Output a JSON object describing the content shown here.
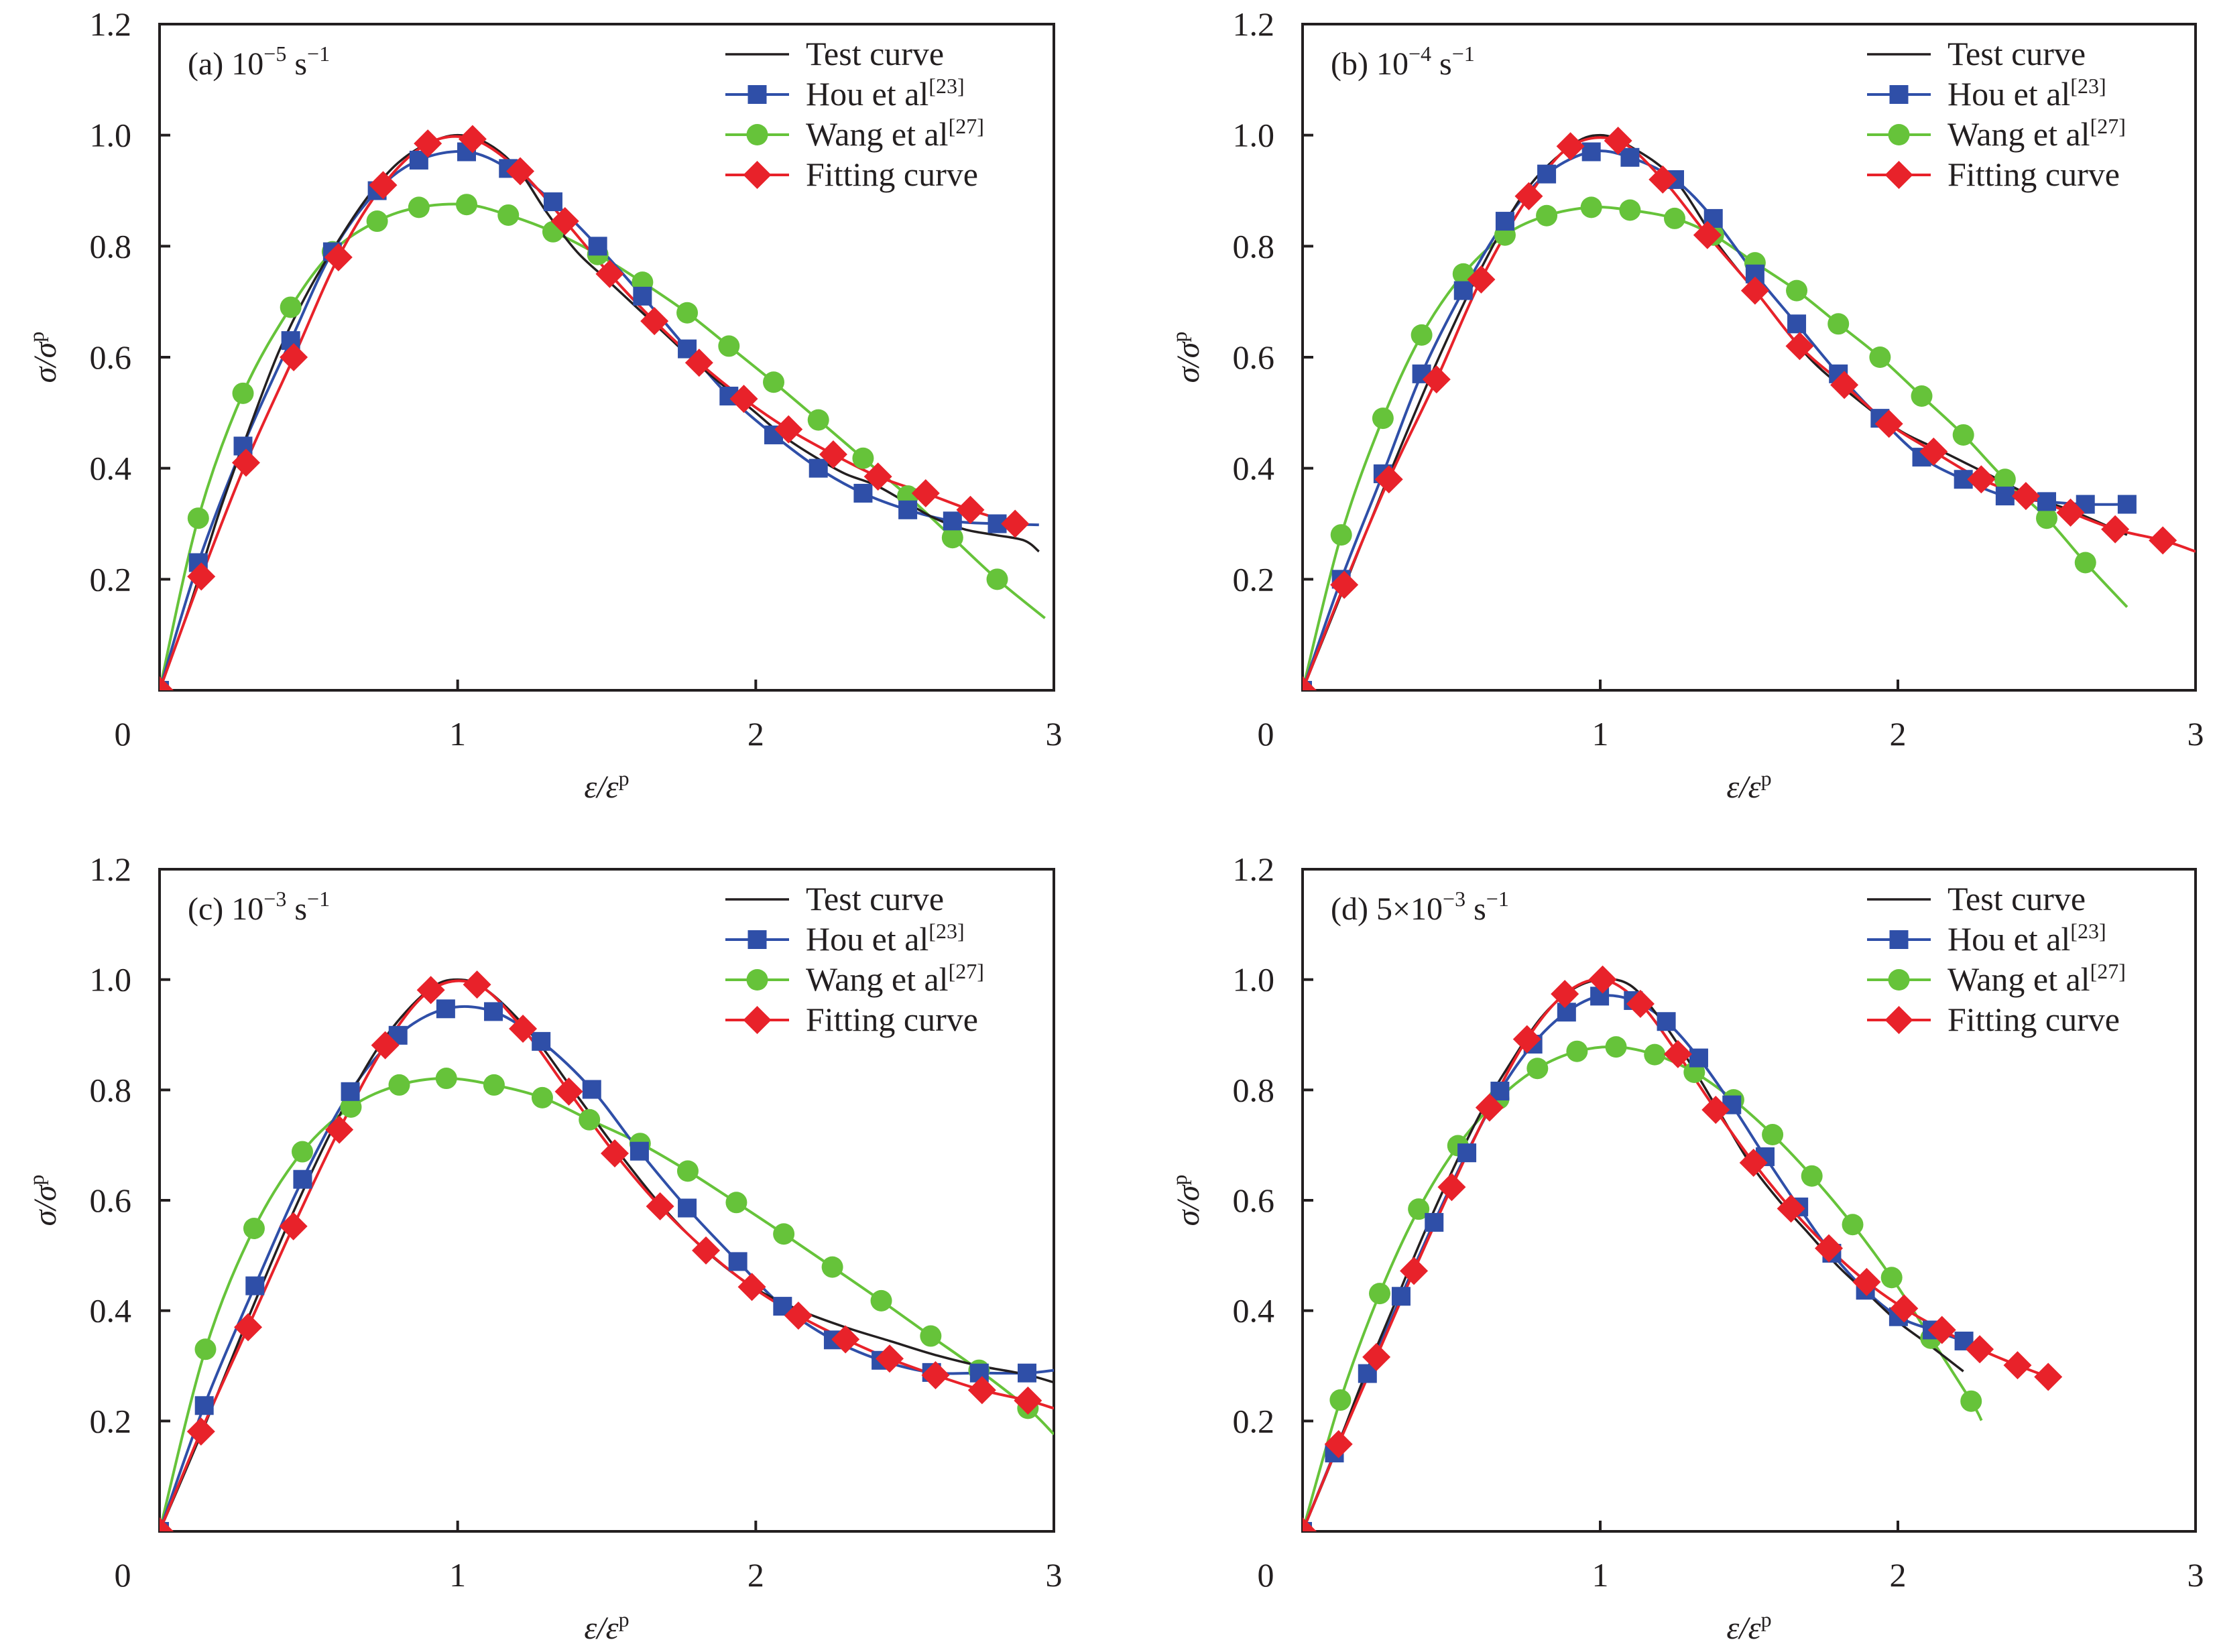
{
  "chart_data": [
    {
      "type": "line",
      "panel": "a",
      "title": "(a) 10⁻⁵ s⁻¹",
      "title_parts": {
        "prefix": "(a) 10",
        "exp": "−5",
        "unit": " s",
        "unit_exp": "−1"
      },
      "xlabel": "ε/εp",
      "ylabel": "σ/σp",
      "xlim": [
        0,
        3
      ],
      "ylim": [
        0,
        1.2
      ],
      "xticks": [
        "0",
        "1",
        "2",
        "3"
      ],
      "yticks": [
        "0.2",
        "0.4",
        "0.6",
        "0.8",
        "1.0",
        "1.2"
      ],
      "legend_position": "top-right",
      "series": [
        {
          "name": "Test curve",
          "key": "test",
          "x": [
            0,
            0.1,
            0.2,
            0.3,
            0.4,
            0.5,
            0.6,
            0.7,
            0.8,
            0.9,
            1.0,
            1.1,
            1.2,
            1.3,
            1.4,
            1.5,
            1.6,
            1.7,
            1.8,
            1.9,
            2.0,
            2.1,
            2.2,
            2.3,
            2.4,
            2.5,
            2.6,
            2.7,
            2.8,
            2.9,
            2.95
          ],
          "y": [
            0,
            0.15,
            0.32,
            0.47,
            0.61,
            0.72,
            0.81,
            0.89,
            0.95,
            0.985,
            1.0,
            0.985,
            0.94,
            0.86,
            0.79,
            0.74,
            0.69,
            0.64,
            0.59,
            0.545,
            0.5,
            0.455,
            0.42,
            0.39,
            0.37,
            0.34,
            0.31,
            0.29,
            0.28,
            0.27,
            0.25
          ]
        },
        {
          "name": "Hou et al[23]",
          "key": "hou",
          "x": [
            0,
            0.13,
            0.28,
            0.44,
            0.58,
            0.73,
            0.87,
            1.03,
            1.17,
            1.32,
            1.47,
            1.62,
            1.77,
            1.91,
            2.06,
            2.21,
            2.36,
            2.51,
            2.66,
            2.81,
            2.95
          ],
          "y": [
            0,
            0.23,
            0.44,
            0.63,
            0.79,
            0.9,
            0.955,
            0.97,
            0.94,
            0.88,
            0.8,
            0.71,
            0.615,
            0.53,
            0.46,
            0.4,
            0.355,
            0.325,
            0.305,
            0.3,
            0.298
          ],
          "marker": "square"
        },
        {
          "name": "Wang et al[27]",
          "key": "wang",
          "x": [
            0,
            0.13,
            0.28,
            0.44,
            0.58,
            0.73,
            0.87,
            1.03,
            1.17,
            1.32,
            1.47,
            1.62,
            1.77,
            1.91,
            2.06,
            2.21,
            2.36,
            2.51,
            2.66,
            2.81,
            2.97
          ],
          "y": [
            0,
            0.31,
            0.535,
            0.69,
            0.79,
            0.845,
            0.87,
            0.875,
            0.856,
            0.826,
            0.785,
            0.735,
            0.68,
            0.62,
            0.555,
            0.487,
            0.418,
            0.35,
            0.275,
            0.2,
            0.13
          ],
          "marker": "circle"
        },
        {
          "name": "Fitting curve",
          "key": "fit",
          "x": [
            0,
            0.14,
            0.29,
            0.45,
            0.6,
            0.75,
            0.9,
            1.05,
            1.21,
            1.36,
            1.51,
            1.66,
            1.81,
            1.96,
            2.11,
            2.26,
            2.41,
            2.57,
            2.72,
            2.87
          ],
          "y": [
            0,
            0.205,
            0.41,
            0.6,
            0.78,
            0.91,
            0.985,
            0.993,
            0.935,
            0.845,
            0.75,
            0.665,
            0.59,
            0.525,
            0.47,
            0.425,
            0.385,
            0.355,
            0.325,
            0.3
          ],
          "marker": "diamond",
          "line": false
        }
      ]
    },
    {
      "type": "line",
      "panel": "b",
      "title": "(b) 10⁻⁴ s⁻¹",
      "title_parts": {
        "prefix": "(b) 10",
        "exp": "−4",
        "unit": " s",
        "unit_exp": "−1"
      },
      "xlabel": "ε/εp",
      "ylabel": "σ/σp",
      "xlim": [
        0,
        3
      ],
      "ylim": [
        0,
        1.2
      ],
      "xticks": [
        "0",
        "1",
        "2",
        "3"
      ],
      "yticks": [
        "0.2",
        "0.4",
        "0.6",
        "0.8",
        "1.0",
        "1.2"
      ],
      "legend_position": "top-right",
      "series": [
        {
          "name": "Test curve",
          "key": "test",
          "x": [
            0,
            0.15,
            0.3,
            0.45,
            0.6,
            0.75,
            0.9,
            1.0,
            1.1,
            1.25,
            1.4,
            1.55,
            1.7,
            1.85,
            2.0,
            2.15,
            2.3,
            2.45,
            2.6,
            2.77
          ],
          "y": [
            0,
            0.2,
            0.4,
            0.59,
            0.76,
            0.9,
            0.98,
            1.0,
            0.98,
            0.92,
            0.8,
            0.7,
            0.6,
            0.53,
            0.47,
            0.43,
            0.39,
            0.35,
            0.32,
            0.28
          ]
        },
        {
          "name": "Hou et al[23]",
          "key": "hou",
          "x": [
            0,
            0.13,
            0.27,
            0.4,
            0.54,
            0.68,
            0.82,
            0.97,
            1.1,
            1.25,
            1.38,
            1.52,
            1.66,
            1.8,
            1.94,
            2.08,
            2.22,
            2.36,
            2.5,
            2.63,
            2.77
          ],
          "y": [
            0,
            0.2,
            0.39,
            0.57,
            0.72,
            0.845,
            0.93,
            0.97,
            0.96,
            0.92,
            0.85,
            0.75,
            0.66,
            0.57,
            0.49,
            0.42,
            0.38,
            0.35,
            0.34,
            0.335,
            0.335
          ],
          "marker": "square"
        },
        {
          "name": "Wang et al[27]",
          "key": "wang",
          "x": [
            0,
            0.13,
            0.27,
            0.4,
            0.54,
            0.68,
            0.82,
            0.97,
            1.1,
            1.25,
            1.38,
            1.52,
            1.66,
            1.8,
            1.94,
            2.08,
            2.22,
            2.36,
            2.5,
            2.63,
            2.77
          ],
          "y": [
            0,
            0.28,
            0.49,
            0.64,
            0.75,
            0.82,
            0.855,
            0.87,
            0.865,
            0.85,
            0.82,
            0.77,
            0.72,
            0.66,
            0.6,
            0.53,
            0.46,
            0.38,
            0.31,
            0.23,
            0.15
          ],
          "marker": "circle"
        },
        {
          "name": "Fitting curve",
          "key": "fit",
          "x": [
            0,
            0.14,
            0.29,
            0.45,
            0.6,
            0.76,
            0.9,
            1.06,
            1.21,
            1.36,
            1.52,
            1.67,
            1.82,
            1.97,
            2.12,
            2.28,
            2.43,
            2.58,
            2.73,
            2.89,
            3.0
          ],
          "y": [
            0,
            0.19,
            0.38,
            0.56,
            0.74,
            0.89,
            0.98,
            0.99,
            0.92,
            0.82,
            0.72,
            0.62,
            0.55,
            0.48,
            0.43,
            0.38,
            0.35,
            0.32,
            0.29,
            0.27,
            0.25
          ],
          "marker": "diamond"
        }
      ]
    },
    {
      "type": "line",
      "panel": "c",
      "title": "(c) 10⁻³ s⁻¹",
      "title_parts": {
        "prefix": "(c) 10",
        "exp": "−3",
        "unit": " s",
        "unit_exp": "−1"
      },
      "xlabel": "ε/εp",
      "ylabel": "σ/σp",
      "xlim": [
        0,
        3
      ],
      "ylim": [
        0,
        1.2
      ],
      "xticks": [
        "0",
        "1",
        "2",
        "3"
      ],
      "yticks": [
        "0.2",
        "0.4",
        "0.6",
        "0.8",
        "1.0",
        "1.2"
      ],
      "legend_position": "top-right",
      "series": [
        {
          "name": "Test curve",
          "key": "test",
          "x": [
            0,
            0.15,
            0.3,
            0.45,
            0.6,
            0.75,
            0.9,
            1.0,
            1.1,
            1.25,
            1.4,
            1.55,
            1.7,
            1.85,
            2.0,
            2.15,
            2.3,
            2.45,
            2.6,
            2.75,
            2.9,
            3.0
          ],
          "y": [
            0,
            0.19,
            0.39,
            0.58,
            0.75,
            0.89,
            0.98,
            1.0,
            0.98,
            0.9,
            0.79,
            0.68,
            0.58,
            0.5,
            0.44,
            0.4,
            0.37,
            0.345,
            0.32,
            0.3,
            0.285,
            0.27
          ]
        },
        {
          "name": "Hou et al[23]",
          "key": "hou",
          "x": [
            0,
            0.15,
            0.32,
            0.48,
            0.64,
            0.8,
            0.96,
            1.12,
            1.28,
            1.45,
            1.61,
            1.77,
            1.94,
            2.09,
            2.26,
            2.42,
            2.59,
            2.75,
            2.91,
            3.0
          ],
          "y": [
            0,
            0.228,
            0.445,
            0.638,
            0.797,
            0.899,
            0.947,
            0.942,
            0.888,
            0.801,
            0.689,
            0.586,
            0.489,
            0.408,
            0.347,
            0.31,
            0.288,
            0.287,
            0.287,
            0.292
          ],
          "marker": "square"
        },
        {
          "name": "Wang et al[27]",
          "key": "wang",
          "x": [
            0,
            0.154,
            0.317,
            0.479,
            0.642,
            0.804,
            0.962,
            1.122,
            1.284,
            1.442,
            1.612,
            1.772,
            1.935,
            2.094,
            2.257,
            2.421,
            2.587,
            2.749,
            2.913,
            3.0
          ],
          "y": [
            0,
            0.33,
            0.549,
            0.688,
            0.769,
            0.809,
            0.821,
            0.809,
            0.786,
            0.746,
            0.703,
            0.653,
            0.596,
            0.539,
            0.479,
            0.418,
            0.354,
            0.292,
            0.223,
            0.176
          ],
          "marker": "circle"
        },
        {
          "name": "Fitting curve",
          "key": "fit",
          "x": [
            0,
            0.139,
            0.297,
            0.449,
            0.603,
            0.757,
            0.91,
            1.065,
            1.219,
            1.373,
            1.527,
            1.679,
            1.833,
            1.987,
            2.143,
            2.301,
            2.449,
            2.603,
            2.759,
            2.913,
            3.0
          ],
          "y": [
            0,
            0.181,
            0.37,
            0.553,
            0.728,
            0.881,
            0.981,
            0.991,
            0.911,
            0.797,
            0.685,
            0.589,
            0.509,
            0.443,
            0.391,
            0.348,
            0.313,
            0.283,
            0.256,
            0.237,
            0.223
          ],
          "marker": "diamond"
        }
      ]
    },
    {
      "type": "line",
      "panel": "d",
      "title": "(d) 5×10⁻³ s⁻¹",
      "title_parts": {
        "prefix": "(d) 5×10",
        "exp": "−3",
        "unit": " s",
        "unit_exp": "−1"
      },
      "xlabel": "ε/εp",
      "ylabel": "σ/σp",
      "xlim": [
        0,
        3
      ],
      "ylim": [
        0,
        1.2
      ],
      "xticks": [
        "0",
        "1",
        "2",
        "3"
      ],
      "yticks": [
        "0.2",
        "0.4",
        "0.6",
        "0.8",
        "1.0",
        "1.2"
      ],
      "legend_position": "top-right",
      "series": [
        {
          "name": "Test curve",
          "key": "test",
          "x": [
            0,
            0.1,
            0.2,
            0.3,
            0.4,
            0.5,
            0.6,
            0.7,
            0.8,
            0.9,
            1.0,
            1.1,
            1.2,
            1.3,
            1.4,
            1.5,
            1.6,
            1.7,
            1.8,
            1.9,
            2.0,
            2.1,
            2.22
          ],
          "y": [
            0,
            0.13,
            0.27,
            0.4,
            0.53,
            0.65,
            0.76,
            0.85,
            0.93,
            0.98,
            1.0,
            0.99,
            0.93,
            0.85,
            0.76,
            0.67,
            0.6,
            0.54,
            0.48,
            0.43,
            0.38,
            0.34,
            0.29
          ]
        },
        {
          "name": "Hou et al[23]",
          "key": "hou",
          "x": [
            0,
            0.107,
            0.218,
            0.331,
            0.442,
            0.552,
            0.663,
            0.774,
            0.887,
            0.998,
            1.111,
            1.222,
            1.331,
            1.442,
            1.554,
            1.667,
            1.778,
            1.891,
            2.002,
            2.115,
            2.222
          ],
          "y": [
            0,
            0.142,
            0.286,
            0.426,
            0.56,
            0.686,
            0.798,
            0.883,
            0.941,
            0.97,
            0.962,
            0.924,
            0.858,
            0.773,
            0.679,
            0.588,
            0.504,
            0.437,
            0.389,
            0.365,
            0.345
          ],
          "marker": "square"
        },
        {
          "name": "Wang et al[27]",
          "key": "wang",
          "x": [
            0,
            0.127,
            0.259,
            0.39,
            0.522,
            0.659,
            0.789,
            0.922,
            1.053,
            1.183,
            1.316,
            1.448,
            1.579,
            1.711,
            1.848,
            1.979,
            2.111,
            2.246,
            2.281
          ],
          "y": [
            0,
            0.238,
            0.431,
            0.584,
            0.699,
            0.784,
            0.839,
            0.87,
            0.878,
            0.864,
            0.832,
            0.782,
            0.719,
            0.644,
            0.556,
            0.46,
            0.35,
            0.236,
            0.201
          ],
          "marker": "circle"
        },
        {
          "name": "Fitting curve",
          "key": "fit",
          "x": [
            0,
            0.121,
            0.248,
            0.374,
            0.501,
            0.628,
            0.754,
            0.881,
            1.008,
            1.135,
            1.261,
            1.388,
            1.515,
            1.641,
            1.768,
            1.895,
            2.021,
            2.148,
            2.275,
            2.402,
            2.505
          ],
          "y": [
            0,
            0.158,
            0.316,
            0.472,
            0.624,
            0.768,
            0.892,
            0.974,
            1.0,
            0.956,
            0.865,
            0.764,
            0.668,
            0.585,
            0.513,
            0.452,
            0.404,
            0.365,
            0.33,
            0.301,
            0.28
          ],
          "marker": "diamond"
        }
      ]
    }
  ],
  "legend": [
    {
      "key": "test",
      "label": "Test curve",
      "ref": ""
    },
    {
      "key": "hou",
      "label": "Hou et al",
      "ref": "[23]"
    },
    {
      "key": "wang",
      "label": "Wang et al",
      "ref": "[27]"
    },
    {
      "key": "fit",
      "label": "Fitting curve",
      "ref": ""
    }
  ],
  "colors": {
    "test": "#231f20",
    "hou": "#2f4fa8",
    "wang": "#66c33a",
    "fit": "#e8222a",
    "axis": "#231f20"
  }
}
